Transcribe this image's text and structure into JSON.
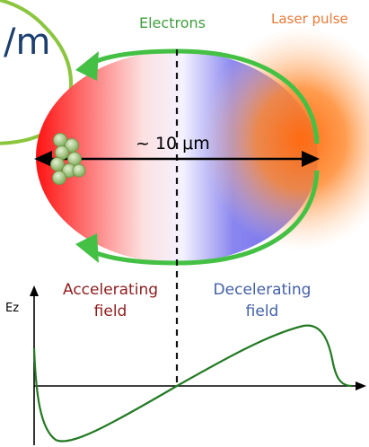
{
  "labels": {
    "top_left_partial": "/m",
    "electrons": "Electrons",
    "laser_pulse": "Laser pulse",
    "size": "~ 10 μm",
    "accelerating_line1": "Accelerating",
    "accelerating_line2": "field",
    "decelerating_line1": "Decelerating",
    "decelerating_line2": "field",
    "ez_axis": "Ez"
  },
  "colors": {
    "green": "#3f9e3f",
    "arrow_green": "#44c144",
    "red": "#ff1010",
    "blue": "#6a66ee",
    "orange": "#ff7a22",
    "accelerating_text": "#8e1d1d",
    "decelerating_text": "#4461a8",
    "field_curve": "#237a23",
    "electron_bunch": "#9cc07a"
  }
}
